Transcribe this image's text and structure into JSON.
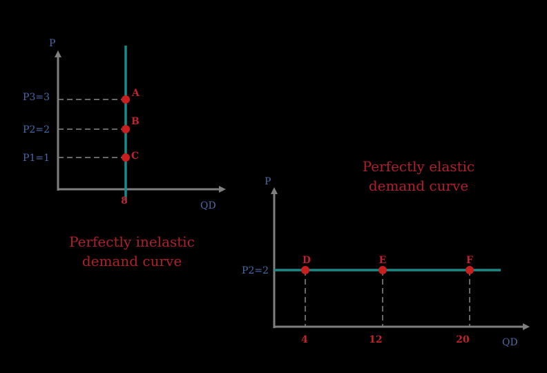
{
  "colors": {
    "axis": "#7f7f7f",
    "curve": "#1a8a88",
    "point": "#c81e1e",
    "dash": "#8a8a8a",
    "label_blue": "#4a6aa8",
    "label_red": "#c0232b"
  },
  "left_chart": {
    "y_axis_label": "P",
    "x_axis_label": "QD",
    "price_labels": [
      "P3=3",
      "P2=2",
      "P1=1"
    ],
    "quantity_label": "8",
    "point_labels": [
      "A",
      "B",
      "C"
    ],
    "caption_line1": "Perfectly inelastic",
    "caption_line2": "demand curve"
  },
  "right_chart": {
    "y_axis_label": "P",
    "x_axis_label": "QD",
    "price_label": "P2=2",
    "quantity_labels": [
      "4",
      "12",
      "20"
    ],
    "point_labels": [
      "D",
      "E",
      "F"
    ],
    "caption_line1": "Perfectly elastic",
    "caption_line2": "demand curve"
  }
}
